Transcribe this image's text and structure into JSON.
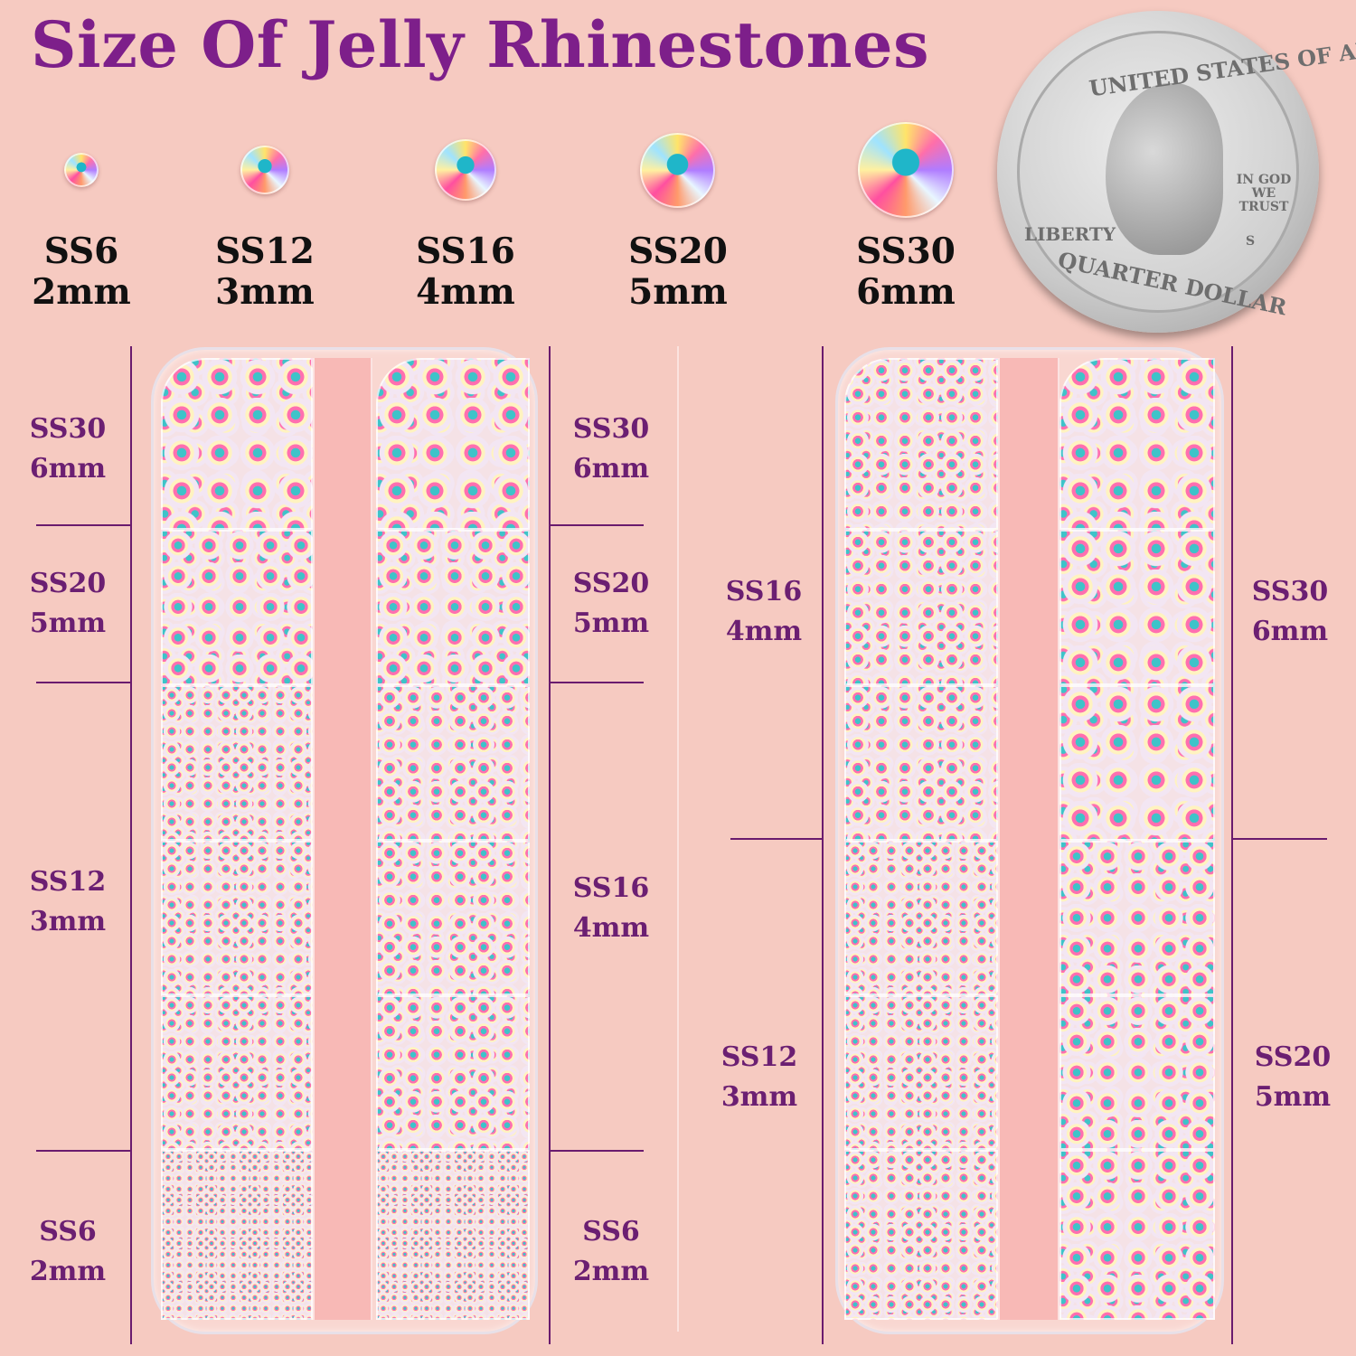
{
  "title": "Size Of Jelly Rhinestones",
  "sizes": [
    {
      "ss": "SS6",
      "mm": "2mm"
    },
    {
      "ss": "SS12",
      "mm": "3mm"
    },
    {
      "ss": "SS16",
      "mm": "4mm"
    },
    {
      "ss": "SS20",
      "mm": "5mm"
    },
    {
      "ss": "SS30",
      "mm": "6mm"
    }
  ],
  "coin": {
    "top": "UNITED STATES OF AMERICA",
    "motto": "IN GOD WE TRUST",
    "liberty": "LIBERTY",
    "mint": "S",
    "bottom": "QUARTER DOLLAR"
  },
  "tray1_left_labels": [
    {
      "ss": "SS30",
      "mm": "6mm"
    },
    {
      "ss": "SS20",
      "mm": "5mm"
    },
    {
      "ss": "SS12",
      "mm": "3mm"
    },
    {
      "ss": "SS6",
      "mm": "2mm"
    }
  ],
  "tray1_right_labels": [
    {
      "ss": "SS30",
      "mm": "6mm"
    },
    {
      "ss": "SS20",
      "mm": "5mm"
    },
    {
      "ss": "SS16",
      "mm": "4mm"
    },
    {
      "ss": "SS6",
      "mm": "2mm"
    }
  ],
  "tray2_left_labels": [
    {
      "ss": "SS16",
      "mm": "4mm"
    },
    {
      "ss": "SS12",
      "mm": "3mm"
    }
  ],
  "tray2_right_labels": [
    {
      "ss": "SS30",
      "mm": "6mm"
    },
    {
      "ss": "SS20",
      "mm": "5mm"
    }
  ],
  "colors": {
    "background": "#f6cac1",
    "title": "#7d1f8a",
    "label": "#6b1f72",
    "line": "#6a1b6e"
  }
}
